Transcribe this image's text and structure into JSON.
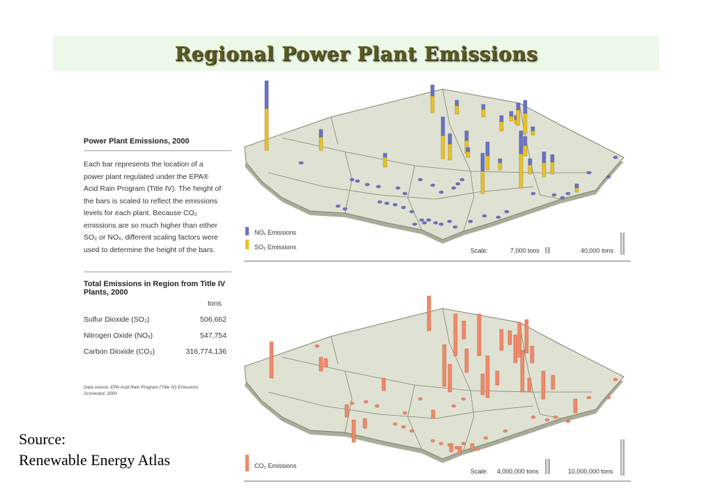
{
  "title": "Regional Power Plant Emissions",
  "left_panel": {
    "heading": "Power Plant Emissions, 2000",
    "paragraph_lines": [
      "Each bar represents the location of a",
      "power plant regulated under the EPA®",
      "Acid Rain Program (Title IV). The height of",
      "the bars is scaled to reflect the emissions",
      "levels for each plant. Because CO₂",
      "emissions are so much higher than either",
      "SO₂ or NOₓ, different scaling factors were",
      "used to determine the height of the bars."
    ],
    "table_heading_line1": "Total Emissions in Region from Title IV",
    "table_heading_line2": "Plants, 2000",
    "unit_header": "tons",
    "rows": [
      {
        "label": "Sulfur Dioxide (SO₂)",
        "value": "506,662"
      },
      {
        "label": "Nitrogen Oxide (NOₓ)",
        "value": "547,754"
      },
      {
        "label": "Carbon Dioxide (CO₂)",
        "value": "316,774,136"
      }
    ],
    "data_source_line1": "Data source: EPA Acid Rain Program (Title IV) Emissions",
    "data_source_line2": "Scorecard, 2000"
  },
  "source_line1": "Source:",
  "source_line2": "Renewable Energy Atlas",
  "top_map": {
    "legend_nox": "NOₓ Emissions",
    "legend_so2": "SO₂ Emissions",
    "scale_label": "Scale:",
    "scale_small": "7,000 tons",
    "scale_large": "40,000 tons"
  },
  "bottom_map": {
    "legend_co2": "CO₂ Emissions",
    "scale_label": "Scale:",
    "scale_small": "4,000,000 tons",
    "scale_large": "10,000,000 tons"
  },
  "colors": {
    "nox": "#6a74c4",
    "so2": "#e8c22a",
    "co2": "#f08a6a",
    "land": "#dfe2d2",
    "title_banner": "#ecf8e8",
    "title_text": "#5b5a21"
  }
}
